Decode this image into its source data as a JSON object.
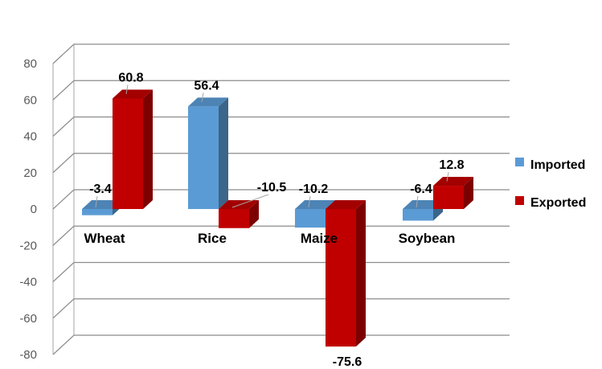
{
  "chart_data": {
    "type": "bar",
    "three_d": true,
    "categories": [
      "Wheat",
      "Rice",
      "Maize",
      "Soybean"
    ],
    "series": [
      {
        "name": "Imported",
        "values": [
          -3.4,
          56.4,
          -10.2,
          -6.4
        ],
        "color": "#5b9bd5"
      },
      {
        "name": "Exported",
        "values": [
          60.8,
          -10.5,
          -75.6,
          12.8
        ],
        "color": "#c00000"
      }
    ],
    "data_labels": {
      "Imported": [
        "-3.4",
        "56.4",
        "-10.2",
        "-6.4"
      ],
      "Exported": [
        "60.8",
        "-10.5",
        "-75.6",
        "12.8"
      ]
    },
    "y_ticks": [
      "-80",
      "-60",
      "-40",
      "-20",
      "0",
      "20",
      "40",
      "60",
      "80"
    ],
    "ylim": [
      -80,
      80
    ],
    "grid": true,
    "legend_position": "right"
  }
}
